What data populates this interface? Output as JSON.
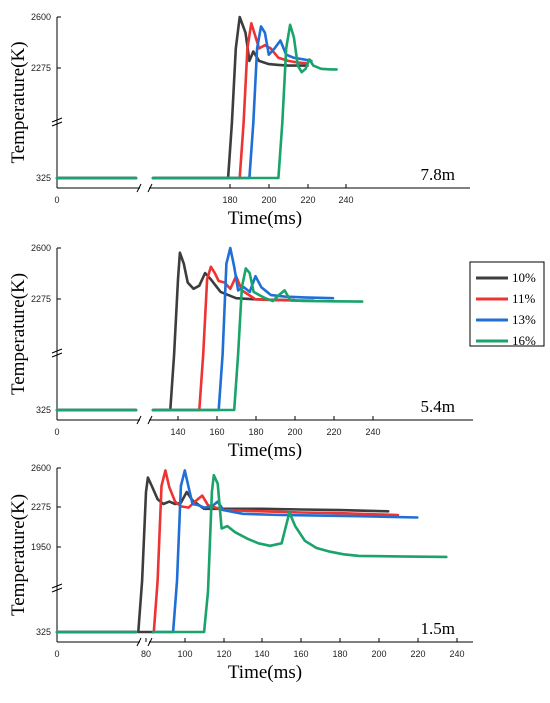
{
  "colors": {
    "10%": "#3d3d3d",
    "11%": "#ee3333",
    "13%": "#1f6fd6",
    "16%": "#1aa36a"
  },
  "legend": [
    "10%",
    "11%",
    "13%",
    "16%"
  ],
  "chart_data": [
    {
      "type": "line",
      "panel_label": "7.8m",
      "xlabel": "Time(ms)",
      "ylabel": "Temperature(K)",
      "xlim": [
        0,
        240
      ],
      "xticks": [
        "0",
        "180",
        "200",
        "220",
        "240"
      ],
      "yticks": [
        "325",
        "2275",
        "2600"
      ],
      "series": [
        {
          "name": "10%",
          "points": [
            [
              0,
              325
            ],
            [
              179,
              325
            ],
            [
              181,
              1300
            ],
            [
              183,
              2400
            ],
            [
              185,
              2600
            ],
            [
              188,
              2500
            ],
            [
              190,
              2320
            ],
            [
              192,
              2380
            ],
            [
              195,
              2320
            ],
            [
              200,
              2300
            ],
            [
              205,
              2295
            ],
            [
              210,
              2290
            ],
            [
              215,
              2290
            ],
            [
              220,
              2290
            ]
          ]
        },
        {
          "name": "11%",
          "points": [
            [
              0,
              325
            ],
            [
              185,
              325
            ],
            [
              187,
              1300
            ],
            [
              189,
              2400
            ],
            [
              191,
              2560
            ],
            [
              193,
              2480
            ],
            [
              195,
              2400
            ],
            [
              198,
              2420
            ],
            [
              201,
              2400
            ],
            [
              205,
              2340
            ],
            [
              210,
              2320
            ],
            [
              215,
              2310
            ],
            [
              220,
              2305
            ]
          ]
        },
        {
          "name": "13%",
          "points": [
            [
              0,
              325
            ],
            [
              190,
              325
            ],
            [
              192,
              1300
            ],
            [
              194,
              2400
            ],
            [
              196,
              2540
            ],
            [
              198,
              2500
            ],
            [
              200,
              2360
            ],
            [
              203,
              2400
            ],
            [
              206,
              2450
            ],
            [
              209,
              2360
            ],
            [
              213,
              2340
            ],
            [
              218,
              2330
            ],
            [
              222,
              2320
            ]
          ]
        },
        {
          "name": "16%",
          "points": [
            [
              0,
              325
            ],
            [
              205,
              325
            ],
            [
              207,
              1300
            ],
            [
              209,
              2400
            ],
            [
              211,
              2550
            ],
            [
              213,
              2470
            ],
            [
              215,
              2290
            ],
            [
              217,
              2200
            ],
            [
              219,
              2260
            ],
            [
              221,
              2330
            ],
            [
              223,
              2290
            ],
            [
              227,
              2260
            ],
            [
              232,
              2250
            ],
            [
              235,
              2250
            ]
          ]
        }
      ]
    },
    {
      "type": "line",
      "panel_label": "5.4m",
      "xlabel": "Time(ms)",
      "ylabel": "Temperature(K)",
      "xlim": [
        0,
        240
      ],
      "xticks": [
        "0",
        "140",
        "160",
        "180",
        "200",
        "220",
        "240"
      ],
      "yticks": [
        "325",
        "2275",
        "2600"
      ],
      "series": [
        {
          "name": "10%",
          "points": [
            [
              0,
              325
            ],
            [
              136,
              325
            ],
            [
              138,
              1300
            ],
            [
              140,
              2400
            ],
            [
              141,
              2570
            ],
            [
              143,
              2500
            ],
            [
              145,
              2380
            ],
            [
              148,
              2340
            ],
            [
              151,
              2360
            ],
            [
              154,
              2440
            ],
            [
              157,
              2400
            ],
            [
              162,
              2320
            ],
            [
              170,
              2280
            ],
            [
              180,
              2270
            ],
            [
              190,
              2260
            ],
            [
              200,
              2255
            ]
          ]
        },
        {
          "name": "11%",
          "points": [
            [
              0,
              325
            ],
            [
              151,
              325
            ],
            [
              153,
              1300
            ],
            [
              155,
              2400
            ],
            [
              157,
              2480
            ],
            [
              159,
              2440
            ],
            [
              161,
              2390
            ],
            [
              164,
              2380
            ],
            [
              167,
              2340
            ],
            [
              170,
              2420
            ],
            [
              173,
              2330
            ],
            [
              180,
              2270
            ],
            [
              190,
              2255
            ],
            [
              200,
              2250
            ],
            [
              210,
              2245
            ]
          ]
        },
        {
          "name": "13%",
          "points": [
            [
              0,
              325
            ],
            [
              161,
              325
            ],
            [
              163,
              1300
            ],
            [
              165,
              2500
            ],
            [
              167,
              2600
            ],
            [
              169,
              2480
            ],
            [
              171,
              2330
            ],
            [
              174,
              2350
            ],
            [
              177,
              2320
            ],
            [
              180,
              2420
            ],
            [
              183,
              2350
            ],
            [
              188,
              2300
            ],
            [
              195,
              2290
            ],
            [
              205,
              2285
            ],
            [
              220,
              2280
            ]
          ]
        },
        {
          "name": "16%",
          "points": [
            [
              0,
              325
            ],
            [
              169,
              325
            ],
            [
              171,
              1300
            ],
            [
              173,
              2350
            ],
            [
              175,
              2470
            ],
            [
              177,
              2440
            ],
            [
              179,
              2320
            ],
            [
              182,
              2300
            ],
            [
              185,
              2280
            ],
            [
              189,
              2240
            ],
            [
              192,
              2300
            ],
            [
              195,
              2330
            ],
            [
              198,
              2250
            ],
            [
              205,
              2240
            ],
            [
              220,
              2235
            ],
            [
              235,
              2230
            ]
          ]
        }
      ]
    },
    {
      "type": "line",
      "panel_label": "1.5m",
      "xlabel": "Time(ms)",
      "ylabel": "Temperature(K)",
      "xlim": [
        0,
        240
      ],
      "xticks": [
        "0",
        "80",
        "100",
        "120",
        "140",
        "160",
        "180",
        "200",
        "220",
        "240"
      ],
      "yticks": [
        "325",
        "1950",
        "2275",
        "2600"
      ],
      "series": [
        {
          "name": "10%",
          "points": [
            [
              0,
              325
            ],
            [
              76,
              325
            ],
            [
              78,
              1300
            ],
            [
              80,
              2400
            ],
            [
              81,
              2520
            ],
            [
              83,
              2450
            ],
            [
              86,
              2340
            ],
            [
              89,
              2300
            ],
            [
              92,
              2320
            ],
            [
              95,
              2300
            ],
            [
              98,
              2310
            ],
            [
              101,
              2400
            ],
            [
              104,
              2330
            ],
            [
              110,
              2260
            ],
            [
              120,
              2260
            ],
            [
              140,
              2260
            ],
            [
              160,
              2255
            ],
            [
              180,
              2250
            ],
            [
              205,
              2240
            ]
          ]
        },
        {
          "name": "11%",
          "points": [
            [
              0,
              325
            ],
            [
              84,
              325
            ],
            [
              86,
              1300
            ],
            [
              88,
              2450
            ],
            [
              90,
              2580
            ],
            [
              92,
              2440
            ],
            [
              95,
              2320
            ],
            [
              98,
              2280
            ],
            [
              102,
              2270
            ],
            [
              106,
              2330
            ],
            [
              109,
              2370
            ],
            [
              112,
              2290
            ],
            [
              120,
              2250
            ],
            [
              140,
              2240
            ],
            [
              160,
              2230
            ],
            [
              180,
              2225
            ],
            [
              210,
              2210
            ]
          ]
        },
        {
          "name": "13%",
          "points": [
            [
              0,
              325
            ],
            [
              94,
              325
            ],
            [
              96,
              1300
            ],
            [
              98,
              2450
            ],
            [
              100,
              2580
            ],
            [
              102,
              2440
            ],
            [
              104,
              2300
            ],
            [
              107,
              2290
            ],
            [
              110,
              2270
            ],
            [
              114,
              2280
            ],
            [
              117,
              2320
            ],
            [
              120,
              2250
            ],
            [
              130,
              2220
            ],
            [
              150,
              2210
            ],
            [
              170,
              2205
            ],
            [
              190,
              2200
            ],
            [
              220,
              2190
            ]
          ]
        },
        {
          "name": "16%",
          "points": [
            [
              0,
              325
            ],
            [
              110,
              325
            ],
            [
              112,
              1100
            ],
            [
              114,
              2400
            ],
            [
              115,
              2540
            ],
            [
              117,
              2470
            ],
            [
              119,
              2100
            ],
            [
              122,
              2120
            ],
            [
              126,
              2070
            ],
            [
              132,
              2020
            ],
            [
              138,
              1980
            ],
            [
              144,
              1960
            ],
            [
              150,
              1980
            ],
            [
              154,
              2230
            ],
            [
              157,
              2120
            ],
            [
              162,
              2000
            ],
            [
              168,
              1930
            ],
            [
              175,
              1860
            ],
            [
              182,
              1810
            ],
            [
              190,
              1780
            ],
            [
              210,
              1770
            ],
            [
              235,
              1760
            ]
          ]
        }
      ]
    }
  ]
}
